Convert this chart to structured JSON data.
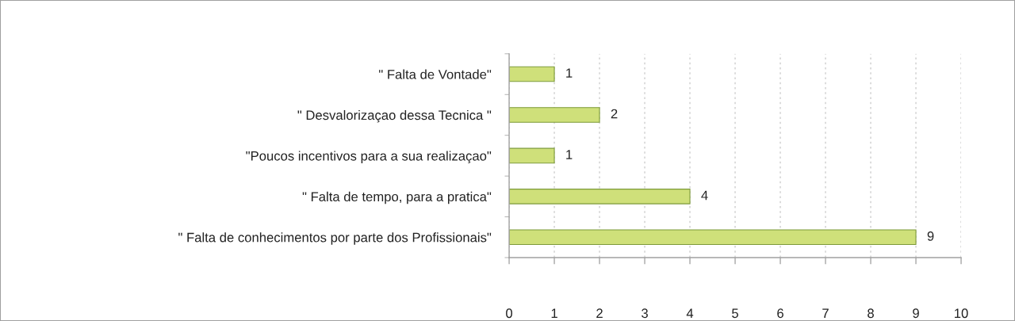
{
  "chart_data": {
    "type": "bar",
    "orientation": "horizontal",
    "categories": [
      "\" Falta de Vontade\"",
      "\" Desvalorizaçao dessa Tecnica \"",
      "\"Poucos incentivos para a sua realizaçao\"",
      "\" Falta de tempo, para a pratica\"",
      "\" Falta de conhecimentos por parte dos Profissionais\""
    ],
    "values": [
      1,
      2,
      1,
      4,
      9
    ],
    "color": "#cfe07a",
    "xlim": [
      0,
      10
    ],
    "xticks": [
      0,
      1,
      2,
      3,
      4,
      5,
      6,
      7,
      8,
      9,
      10
    ],
    "grid": "x",
    "data_labels": true
  }
}
